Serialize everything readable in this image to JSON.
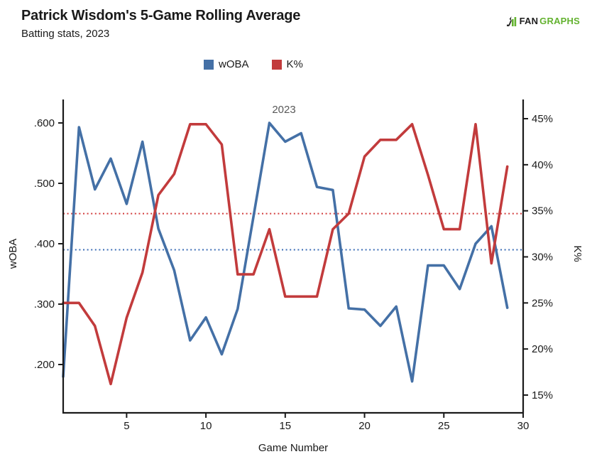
{
  "header": {
    "title": "Patrick Wisdom's 5-Game Rolling Average",
    "subtitle": "Batting stats, 2023",
    "logo": {
      "fan": "FAN",
      "graphs": "GRAPHS"
    }
  },
  "legend": [
    {
      "label": "wOBA",
      "color": "#4470A6"
    },
    {
      "label": "K%",
      "color": "#C23B3C"
    }
  ],
  "chart_data": {
    "type": "line",
    "annotation": "2023",
    "xlabel": "Game Number",
    "x": [
      1,
      2,
      3,
      4,
      5,
      6,
      7,
      8,
      9,
      10,
      11,
      12,
      13,
      14,
      15,
      16,
      17,
      18,
      19,
      20,
      21,
      22,
      23,
      24,
      25,
      26,
      27,
      28,
      29
    ],
    "xlim": [
      1,
      30
    ],
    "x_ticks": [
      5,
      10,
      15,
      20,
      25,
      30
    ],
    "left_axis": {
      "label": "wOBA",
      "min": 0.12,
      "max": 0.6365,
      "tick_values": [
        0.2,
        0.3,
        0.4,
        0.5,
        0.6
      ],
      "tick_labels": [
        ".200",
        ".300",
        ".400",
        ".500",
        ".600"
      ]
    },
    "right_axis": {
      "label": "K%",
      "min": 13.07,
      "max": 46.93,
      "tick_values": [
        15,
        20,
        25,
        30,
        35,
        40,
        45
      ],
      "tick_labels": [
        "15%",
        "20%",
        "25%",
        "30%",
        "35%",
        "40%",
        "45%"
      ]
    },
    "series": [
      {
        "name": "wOBA",
        "axis": "left",
        "color": "#4470A6",
        "values": [
          0.18,
          0.593,
          0.49,
          0.541,
          0.466,
          0.569,
          0.425,
          0.356,
          0.24,
          0.278,
          0.217,
          0.292,
          0.445,
          0.6,
          0.569,
          0.583,
          0.494,
          0.489,
          0.293,
          0.291,
          0.264,
          0.296,
          0.172,
          0.364,
          0.364,
          0.325,
          0.4,
          0.429,
          0.294
        ]
      },
      {
        "name": "K%",
        "axis": "right",
        "color": "#C23B3C",
        "values": [
          25.0,
          25.0,
          22.5,
          16.2,
          23.4,
          28.3,
          36.7,
          39.0,
          44.4,
          44.4,
          42.2,
          28.1,
          28.1,
          33.0,
          25.7,
          25.7,
          25.7,
          33.0,
          34.7,
          40.9,
          42.7,
          42.7,
          44.4,
          38.9,
          33.0,
          33.0,
          44.4,
          29.3,
          39.8
        ]
      }
    ],
    "reference_lines": [
      {
        "series": "wOBA",
        "axis": "left",
        "value": 0.39,
        "color": "#3A6CB5",
        "style": "dotted"
      },
      {
        "series": "K%",
        "axis": "right",
        "value": 34.7,
        "color": "#D23C3C",
        "style": "dotted"
      }
    ]
  }
}
